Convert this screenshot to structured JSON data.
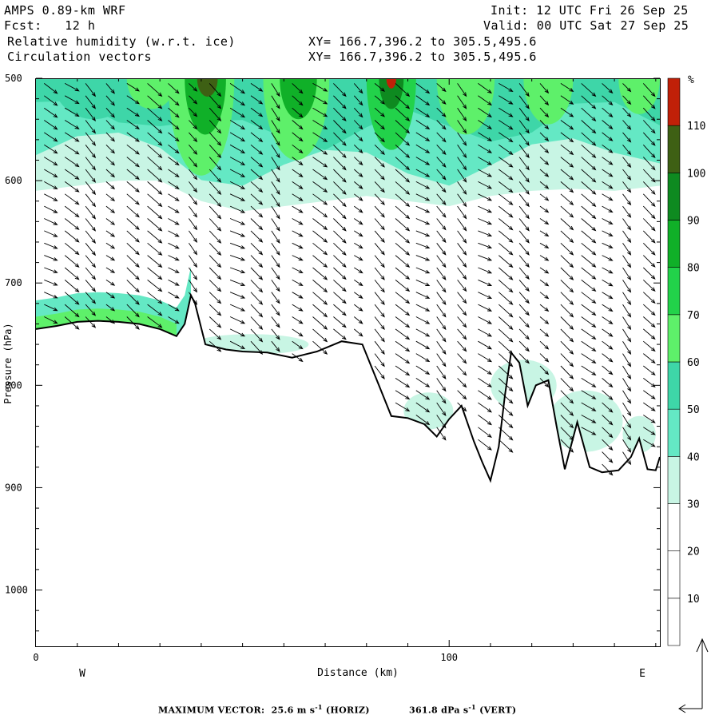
{
  "header": {
    "model": "AMPS 0.89-km WRF",
    "init": "Init: 12 UTC Fri 26 Sep 25",
    "fcst": "Fcst:   12 h",
    "valid": "Valid: 00 UTC Sat 27 Sep 25",
    "field1": "Relative humidity (w.r.t. ice)",
    "field1_xy": "XY= 166.7,396.2 to 305.5,495.6",
    "field2": "Circulation vectors",
    "field2_xy": "XY= 166.7,396.2 to 305.5,495.6"
  },
  "footer": {
    "label": "MAXIMUM VECTOR:",
    "horiz_value": "25.6",
    "horiz_unit": "m s",
    "horiz_exp": "-1",
    "horiz_tag": "(HORIZ)",
    "vert_value": "361.8",
    "vert_unit": "dPa s",
    "vert_exp": "-1",
    "vert_tag": "(VERT)"
  },
  "chart_data": {
    "type": "heatmap",
    "title": "Relative humidity (w.r.t. ice)",
    "xlabel": "Distance (km)",
    "ylabel": "Pressure (hPa)",
    "xlim": [
      0,
      151
    ],
    "ylim": [
      1055,
      500
    ],
    "x_ticks": [
      0,
      100
    ],
    "y_ticks": [
      500,
      600,
      700,
      800,
      900,
      1000
    ],
    "x_dir_labels": [
      "W",
      "E"
    ],
    "colorbar": {
      "unit": "%",
      "levels": [
        10,
        20,
        30,
        40,
        50,
        60,
        70,
        80,
        90,
        100,
        110
      ],
      "colors": [
        "#ffffff",
        "#ffffff",
        "#ffffff",
        "#c8f5e4",
        "#64e8c4",
        "#3ed6a8",
        "#5ef06a",
        "#22d24a",
        "#10b028",
        "#0e8a20",
        "#3e6014",
        "#c02008"
      ]
    },
    "terrain_pressure": [
      {
        "x": 0,
        "p": 745
      },
      {
        "x": 5,
        "p": 742
      },
      {
        "x": 10,
        "p": 738
      },
      {
        "x": 15,
        "p": 737
      },
      {
        "x": 20,
        "p": 738
      },
      {
        "x": 25,
        "p": 740
      },
      {
        "x": 30,
        "p": 745
      },
      {
        "x": 34,
        "p": 752
      },
      {
        "x": 36,
        "p": 740
      },
      {
        "x": 37.5,
        "p": 712
      },
      {
        "x": 38.5,
        "p": 720
      },
      {
        "x": 41,
        "p": 760
      },
      {
        "x": 46,
        "p": 765
      },
      {
        "x": 50,
        "p": 767
      },
      {
        "x": 56,
        "p": 768
      },
      {
        "x": 62,
        "p": 773
      },
      {
        "x": 68,
        "p": 767
      },
      {
        "x": 74,
        "p": 757
      },
      {
        "x": 79,
        "p": 760
      },
      {
        "x": 83,
        "p": 800
      },
      {
        "x": 86,
        "p": 830
      },
      {
        "x": 90,
        "p": 832
      },
      {
        "x": 94,
        "p": 838
      },
      {
        "x": 97,
        "p": 850
      },
      {
        "x": 100,
        "p": 833
      },
      {
        "x": 103,
        "p": 820
      },
      {
        "x": 106,
        "p": 855
      },
      {
        "x": 108,
        "p": 875
      },
      {
        "x": 110,
        "p": 893
      },
      {
        "x": 112,
        "p": 860
      },
      {
        "x": 113.5,
        "p": 810
      },
      {
        "x": 115,
        "p": 768
      },
      {
        "x": 117,
        "p": 778
      },
      {
        "x": 119,
        "p": 820
      },
      {
        "x": 121,
        "p": 800
      },
      {
        "x": 124,
        "p": 795
      },
      {
        "x": 126,
        "p": 840
      },
      {
        "x": 128,
        "p": 882
      },
      {
        "x": 131,
        "p": 836
      },
      {
        "x": 134,
        "p": 880
      },
      {
        "x": 137,
        "p": 885
      },
      {
        "x": 141,
        "p": 883
      },
      {
        "x": 144,
        "p": 870
      },
      {
        "x": 146,
        "p": 852
      },
      {
        "x": 148,
        "p": 882
      },
      {
        "x": 150,
        "p": 883
      },
      {
        "x": 151,
        "p": 870
      }
    ],
    "moist_band_bottom_p": [
      {
        "x": 0,
        "p": 610
      },
      {
        "x": 10,
        "p": 605
      },
      {
        "x": 20,
        "p": 600
      },
      {
        "x": 30,
        "p": 600
      },
      {
        "x": 40,
        "p": 620
      },
      {
        "x": 50,
        "p": 630
      },
      {
        "x": 60,
        "p": 625
      },
      {
        "x": 70,
        "p": 620
      },
      {
        "x": 80,
        "p": 615
      },
      {
        "x": 90,
        "p": 620
      },
      {
        "x": 100,
        "p": 625
      },
      {
        "x": 110,
        "p": 615
      },
      {
        "x": 120,
        "p": 610
      },
      {
        "x": 130,
        "p": 608
      },
      {
        "x": 140,
        "p": 610
      },
      {
        "x": 151,
        "p": 605
      }
    ]
  }
}
